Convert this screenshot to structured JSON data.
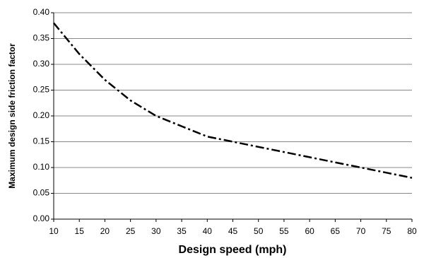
{
  "chart_data": {
    "type": "line",
    "xlabel": "Design speed (mph)",
    "ylabel": "Maximum design side friction factor",
    "x": [
      10,
      15,
      20,
      25,
      30,
      35,
      40,
      45,
      50,
      55,
      60,
      65,
      70,
      75,
      80
    ],
    "values": [
      0.38,
      0.32,
      0.27,
      0.23,
      0.2,
      0.18,
      0.16,
      0.15,
      0.14,
      0.13,
      0.12,
      0.11,
      0.1,
      0.09,
      0.08
    ],
    "color": "#000000",
    "xlim": [
      10,
      80
    ],
    "xticks": [
      10,
      15,
      20,
      25,
      30,
      35,
      40,
      45,
      50,
      55,
      60,
      65,
      70,
      75,
      80
    ],
    "ylim": [
      0,
      0.4
    ],
    "yticks": [
      {
        "value": 0,
        "label": "0.00"
      },
      {
        "value": 0.05,
        "label": "0.05"
      },
      {
        "value": 0.1,
        "label": "0.10"
      },
      {
        "value": 0.15,
        "label": "0.15"
      },
      {
        "value": 0.2,
        "label": "0.20"
      },
      {
        "value": 0.25,
        "label": "0.25"
      },
      {
        "value": 0.3,
        "label": "0.30"
      },
      {
        "value": 0.35,
        "label": "0.35"
      },
      {
        "value": 0.4,
        "label": "0.40"
      }
    ],
    "grid": true
  }
}
